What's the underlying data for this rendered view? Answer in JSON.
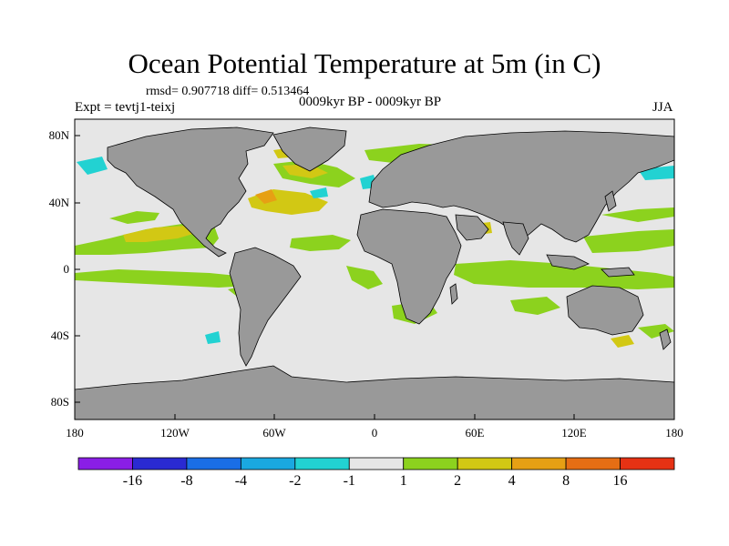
{
  "title": "Ocean Potential Temperature at 5m (in C)",
  "stats": "rmsd= 0.907718 diff= 0.513464",
  "expt": "Expt = tevtj1-teixj",
  "period": "0009kyr BP - 0009kyr BP",
  "season": "JJA",
  "y_ticks": [
    "80N",
    "40N",
    "0",
    "40S",
    "80S"
  ],
  "x_ticks": [
    "180",
    "120W",
    "60W",
    "0",
    "60E",
    "120E",
    "180"
  ],
  "colorbar": {
    "labels": [
      "-16",
      "-8",
      "-4",
      "-2",
      "-1",
      "1",
      "2",
      "4",
      "8",
      "16"
    ],
    "colors": [
      "#8a1ee6",
      "#2a2ad2",
      "#1a6ee6",
      "#1aa8e0",
      "#22d2d2",
      "#e6e6e6",
      "#8cd21e",
      "#d2c814",
      "#e6a014",
      "#e66e14",
      "#e63214"
    ]
  },
  "map_colors": {
    "land": "#999999",
    "ocean_neutral": "#e6e6e6",
    "plus_1_2": "#8cd21e",
    "plus_2_4": "#d2c814",
    "plus_4_8": "#e6a014",
    "minus_1_2": "#22d2d2",
    "minus_2_4": "#1aa8e0"
  }
}
